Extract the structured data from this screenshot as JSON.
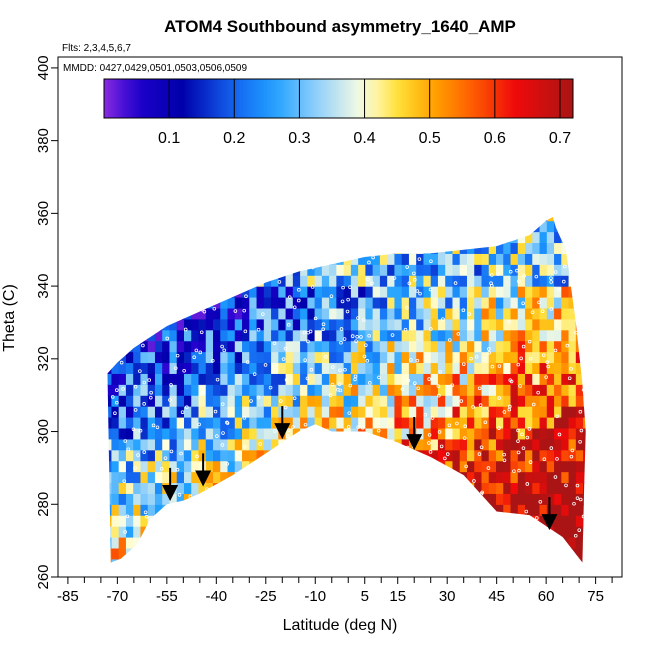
{
  "chart_data": {
    "type": "heatmap",
    "title": "ATOM4 Southbound asymmetry_1640_AMP",
    "annotations": {
      "flights": "Flts: 2,3,4,5,6,7",
      "dates": "MMDD: 0427,0429,0501,0503,0506,0509"
    },
    "xlabel": "Latitude (deg N)",
    "ylabel": "Theta (C)",
    "xlim": [
      -88,
      83
    ],
    "ylim": [
      260,
      403
    ],
    "x_ticks": [
      -85,
      -70,
      -55,
      -40,
      -25,
      -10,
      5,
      15,
      30,
      45,
      60,
      75
    ],
    "x_minor_ticks": [
      -80,
      -75,
      -65,
      -60,
      -50,
      -45,
      -35,
      -30,
      -20,
      -15,
      -5,
      0,
      10,
      20,
      25,
      35,
      40,
      50,
      55,
      65,
      70,
      80
    ],
    "y_ticks": [
      260,
      280,
      300,
      320,
      340,
      360,
      380,
      400
    ],
    "colorbar": {
      "ticks": [
        0.1,
        0.2,
        0.3,
        0.4,
        0.5,
        0.6,
        0.7
      ],
      "range": [
        0.0,
        0.72
      ],
      "colors": [
        "#8a2be2",
        "#0000cd",
        "#0000a0",
        "#1e90ff",
        "#87cefa",
        "#ffffe0",
        "#ffd700",
        "#ff8c00",
        "#ff0000",
        "#b22222"
      ]
    },
    "top_boundary": [
      [
        -73,
        316
      ],
      [
        -70,
        319
      ],
      [
        -65,
        323
      ],
      [
        -60,
        326
      ],
      [
        -55,
        329
      ],
      [
        -45,
        333
      ],
      [
        -35,
        337
      ],
      [
        -25,
        341
      ],
      [
        -15,
        344
      ],
      [
        -5,
        346
      ],
      [
        5,
        348
      ],
      [
        15,
        349
      ],
      [
        25,
        349
      ],
      [
        35,
        350
      ],
      [
        45,
        351
      ],
      [
        55,
        354
      ],
      [
        60,
        358
      ],
      [
        62,
        359
      ],
      [
        63,
        356
      ],
      [
        66,
        350
      ],
      [
        69,
        330
      ],
      [
        71,
        313
      ],
      [
        72,
        300
      ],
      [
        71.5,
        284
      ],
      [
        71,
        264
      ]
    ],
    "bottom_boundary": [
      [
        -72,
        264
      ],
      [
        -69,
        265
      ],
      [
        -64,
        269
      ],
      [
        -60,
        276
      ],
      [
        -55,
        280
      ],
      [
        -50,
        281
      ],
      [
        -45,
        283
      ],
      [
        -35,
        288
      ],
      [
        -25,
        294
      ],
      [
        -15,
        300
      ],
      [
        -10,
        302
      ],
      [
        -5,
        300
      ],
      [
        5,
        300
      ],
      [
        15,
        297
      ],
      [
        25,
        293
      ],
      [
        35,
        288
      ],
      [
        45,
        278
      ],
      [
        55,
        277
      ],
      [
        65,
        271
      ],
      [
        71,
        264
      ]
    ],
    "series": [],
    "arrows": [
      {
        "lat": -54,
        "theta": 282
      },
      {
        "lat": -44,
        "theta": 286
      },
      {
        "lat": -20,
        "theta": 299
      },
      {
        "lat": 20,
        "theta": 296
      },
      {
        "lat": 61,
        "theta": 274
      }
    ]
  }
}
